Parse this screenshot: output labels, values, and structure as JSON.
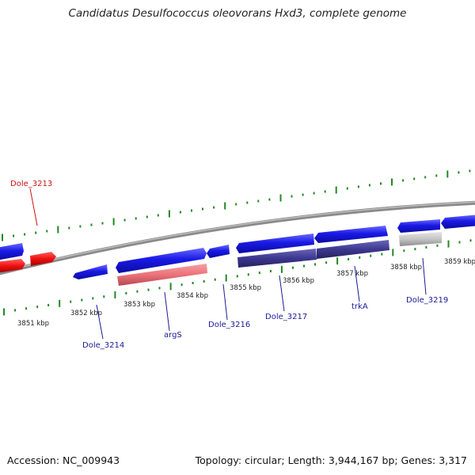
{
  "title": "Candidatus Desulfococcus oleovorans Hxd3, complete genome",
  "footer": {
    "accession": "Accession: NC_009943",
    "summary": "Topology: circular; Length: 3,944,167 bp; Genes: 3,317"
  },
  "colors": {
    "forward_gene": "#1a1adc",
    "reverse_gene": "#3a3688",
    "rna_gene": "#e35f64",
    "highlight_gene": "#ee1111",
    "pseudo_gene": "#b8b8b8",
    "backbone": "#8c8c8c",
    "tick": "#228822",
    "label_blue": "#1a1a99",
    "label_red": "#cc1111"
  },
  "scale_labels": [
    "3851 kbp",
    "3852 kbp",
    "3853 kbp",
    "3854 kbp",
    "3855 kbp",
    "3856 kbp",
    "3857 kbp",
    "3858 kbp",
    "3859 kbp"
  ],
  "genes": [
    {
      "name": "Dole_3213",
      "strand": "forward",
      "type": "highlight",
      "labeled": true
    },
    {
      "name": "Dole_3214",
      "strand": "reverse",
      "type": "cds",
      "labeled": true
    },
    {
      "name": "argS",
      "strand": "forward",
      "type": "rna",
      "labeled": true
    },
    {
      "name": "Dole_3216",
      "strand": "reverse",
      "type": "cds",
      "labeled": true
    },
    {
      "name": "Dole_3217",
      "strand": "reverse",
      "type": "cds",
      "labeled": true
    },
    {
      "name": "trkA",
      "strand": "reverse",
      "type": "cds",
      "labeled": true
    },
    {
      "name": "Dole_3219",
      "strand": "reverse",
      "type": "pseudo",
      "labeled": true
    }
  ]
}
